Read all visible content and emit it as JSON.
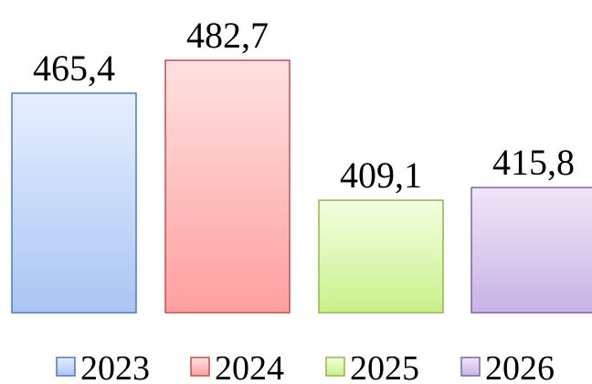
{
  "chart_data": {
    "type": "bar",
    "title": "",
    "xlabel": "",
    "ylabel": "",
    "categories": [
      "2023",
      "2024",
      "2025",
      "2026"
    ],
    "values": [
      465.4,
      482.7,
      409.1,
      415.8
    ],
    "value_labels": [
      "465,4",
      "482,7",
      "409,1",
      "415,8"
    ],
    "ylim": [
      350,
      500
    ],
    "grid": false,
    "legend_position": "bottom",
    "legend": [
      "2023",
      "2024",
      "2025",
      "2026"
    ],
    "colors": [
      {
        "top": "#e6efff",
        "bottom": "#a9c5f3",
        "stroke": "#4f78b8"
      },
      {
        "top": "#ffe1e1",
        "bottom": "#ff9f9f",
        "stroke": "#c0504d"
      },
      {
        "top": "#f4ffe0",
        "bottom": "#c9f08b",
        "stroke": "#8fb84f"
      },
      {
        "top": "#eee6f8",
        "bottom": "#c7b3e6",
        "stroke": "#8064a2"
      }
    ]
  }
}
